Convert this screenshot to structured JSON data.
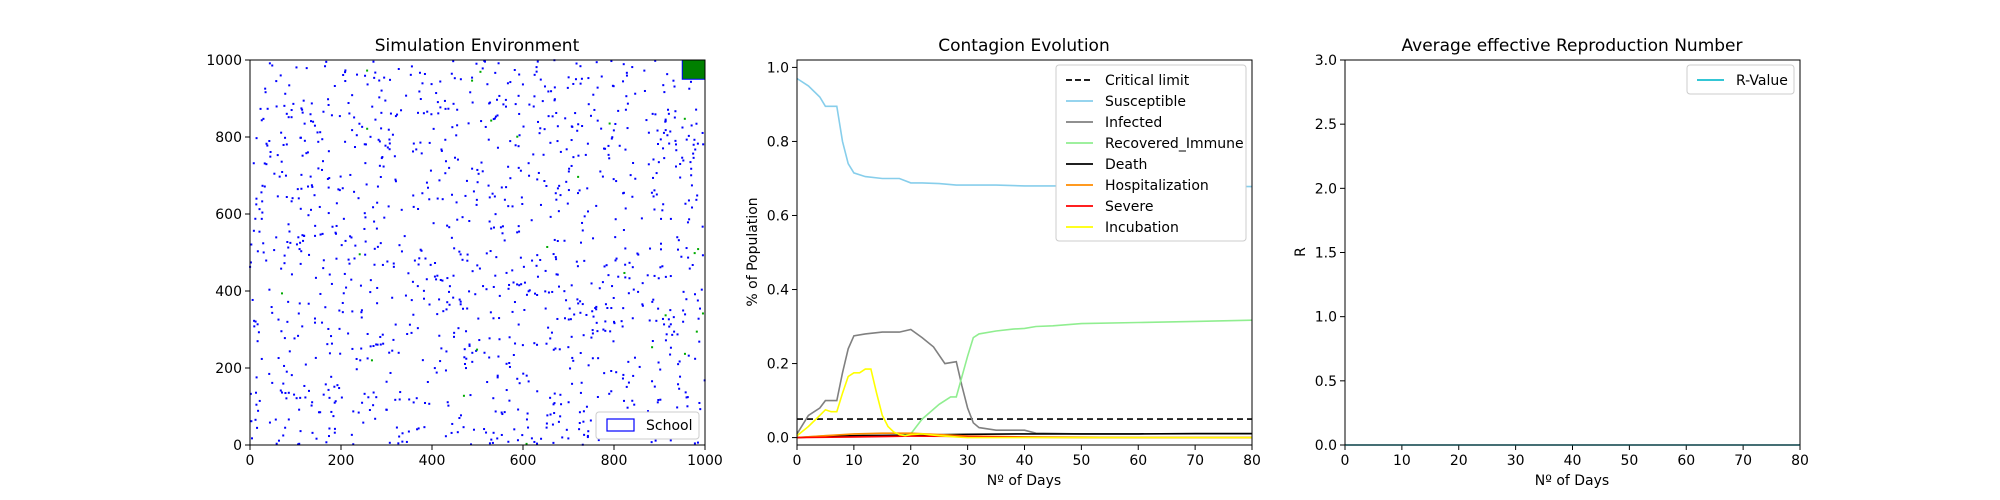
{
  "chart_data": [
    {
      "type": "scatter",
      "title": "Simulation Environment",
      "xlim": [
        0,
        1000
      ],
      "ylim": [
        0,
        1000
      ],
      "xticks": [
        "0",
        "200",
        "400",
        "600",
        "800",
        "1000"
      ],
      "yticks": [
        "0",
        "200",
        "400",
        "600",
        "800",
        "1000"
      ],
      "point_color": "#0000ff",
      "point_count": 1200,
      "secondary_point_color": "#00aa00",
      "secondary_point_count": 24,
      "school": {
        "x": [
          950,
          1000
        ],
        "y": [
          950,
          1000
        ],
        "color": "#008000"
      },
      "legend": {
        "label": "School",
        "position": "lower right"
      }
    },
    {
      "type": "line",
      "title": "Contagion Evolution",
      "xlabel": "Nº of Days",
      "ylabel": "% of Population",
      "xlim": [
        0,
        80
      ],
      "ylim": [
        -0.02,
        1.02
      ],
      "xticks": [
        "0",
        "10",
        "20",
        "30",
        "40",
        "50",
        "60",
        "70",
        "80"
      ],
      "yticks": [
        "0.0",
        "0.2",
        "0.4",
        "0.6",
        "0.8",
        "1.0"
      ],
      "legend_position": "upper right",
      "critical_limit": {
        "name": "Critical limit",
        "value": 0.05,
        "color": "#000000",
        "dashed": true
      },
      "series": [
        {
          "name": "Susceptible",
          "color": "#87ceeb",
          "x": [
            0,
            2,
            4,
            5,
            7,
            8,
            9,
            10,
            12,
            15,
            18,
            20,
            22,
            25,
            28,
            30,
            35,
            40,
            45,
            50,
            60,
            70,
            80
          ],
          "y": [
            0.97,
            0.95,
            0.92,
            0.895,
            0.895,
            0.8,
            0.74,
            0.715,
            0.705,
            0.7,
            0.7,
            0.688,
            0.688,
            0.686,
            0.682,
            0.682,
            0.682,
            0.68,
            0.68,
            0.68,
            0.679,
            0.679,
            0.678
          ]
        },
        {
          "name": "Infected",
          "color": "#808080",
          "x": [
            0,
            2,
            4,
            5,
            7,
            8,
            9,
            10,
            12,
            15,
            18,
            20,
            22,
            24,
            26,
            28,
            29,
            30,
            31,
            32,
            35,
            40,
            42,
            50,
            60,
            70,
            80
          ],
          "y": [
            0.01,
            0.06,
            0.08,
            0.1,
            0.1,
            0.175,
            0.24,
            0.275,
            0.28,
            0.285,
            0.285,
            0.292,
            0.27,
            0.245,
            0.2,
            0.205,
            0.14,
            0.08,
            0.04,
            0.027,
            0.02,
            0.02,
            0.012,
            0.01,
            0.01,
            0.01,
            0.01
          ]
        },
        {
          "name": "Recovered_Immune",
          "color": "#90ee90",
          "x": [
            0,
            5,
            10,
            15,
            17,
            19,
            20,
            22,
            25,
            27,
            28,
            30,
            31,
            32,
            35,
            38,
            40,
            42,
            45,
            50,
            60,
            70,
            80
          ],
          "y": [
            0.0,
            0.005,
            0.005,
            0.005,
            0.005,
            0.008,
            0.01,
            0.05,
            0.09,
            0.11,
            0.11,
            0.22,
            0.27,
            0.28,
            0.288,
            0.293,
            0.295,
            0.3,
            0.302,
            0.308,
            0.311,
            0.314,
            0.317
          ]
        },
        {
          "name": "Death",
          "color": "#000000",
          "x": [
            0,
            5,
            10,
            20,
            30,
            40,
            50,
            60,
            70,
            80
          ],
          "y": [
            0.0,
            0.003,
            0.005,
            0.007,
            0.009,
            0.01,
            0.01,
            0.01,
            0.011,
            0.011
          ]
        },
        {
          "name": "Hospitalization",
          "color": "#ff8c00",
          "x": [
            0,
            5,
            10,
            15,
            20,
            25,
            30,
            40,
            50,
            60,
            70,
            80
          ],
          "y": [
            0.0,
            0.005,
            0.01,
            0.012,
            0.012,
            0.008,
            0.004,
            0.002,
            0.001,
            0.0,
            0.0,
            0.0
          ]
        },
        {
          "name": "Severe",
          "color": "#ff0000",
          "x": [
            0,
            10,
            20,
            30,
            40,
            50,
            60,
            70,
            80
          ],
          "y": [
            0.0,
            0.002,
            0.004,
            0.003,
            0.001,
            0.0,
            0.0,
            0.0,
            0.0
          ]
        },
        {
          "name": "Incubation",
          "color": "#ffff00",
          "x": [
            0,
            2,
            4,
            5,
            6,
            7,
            8,
            9,
            10,
            11,
            12,
            13,
            14,
            15,
            16,
            17,
            18,
            19,
            20,
            22,
            25,
            28,
            30,
            35,
            40,
            50,
            60,
            70,
            80
          ],
          "y": [
            0.005,
            0.03,
            0.06,
            0.075,
            0.07,
            0.07,
            0.12,
            0.165,
            0.175,
            0.175,
            0.185,
            0.185,
            0.12,
            0.06,
            0.03,
            0.015,
            0.008,
            0.005,
            0.008,
            0.01,
            0.005,
            0.002,
            0.0,
            0.0,
            0.0,
            0.0,
            0.0,
            0.0,
            0.0
          ]
        }
      ]
    },
    {
      "type": "line",
      "title": "Average effective Reproduction Number",
      "xlabel": "Nº of Days",
      "ylabel": "R",
      "xlim": [
        0,
        80
      ],
      "ylim": [
        0,
        3.0
      ],
      "xticks": [
        "0",
        "10",
        "20",
        "30",
        "40",
        "50",
        "60",
        "70",
        "80"
      ],
      "yticks": [
        "0.0",
        "0.5",
        "1.0",
        "1.5",
        "2.0",
        "2.5",
        "3.0"
      ],
      "legend_position": "upper right",
      "series": [
        {
          "name": "R-Value",
          "color": "#17becf",
          "x": [
            0,
            80
          ],
          "y": [
            0,
            0
          ]
        }
      ]
    }
  ]
}
